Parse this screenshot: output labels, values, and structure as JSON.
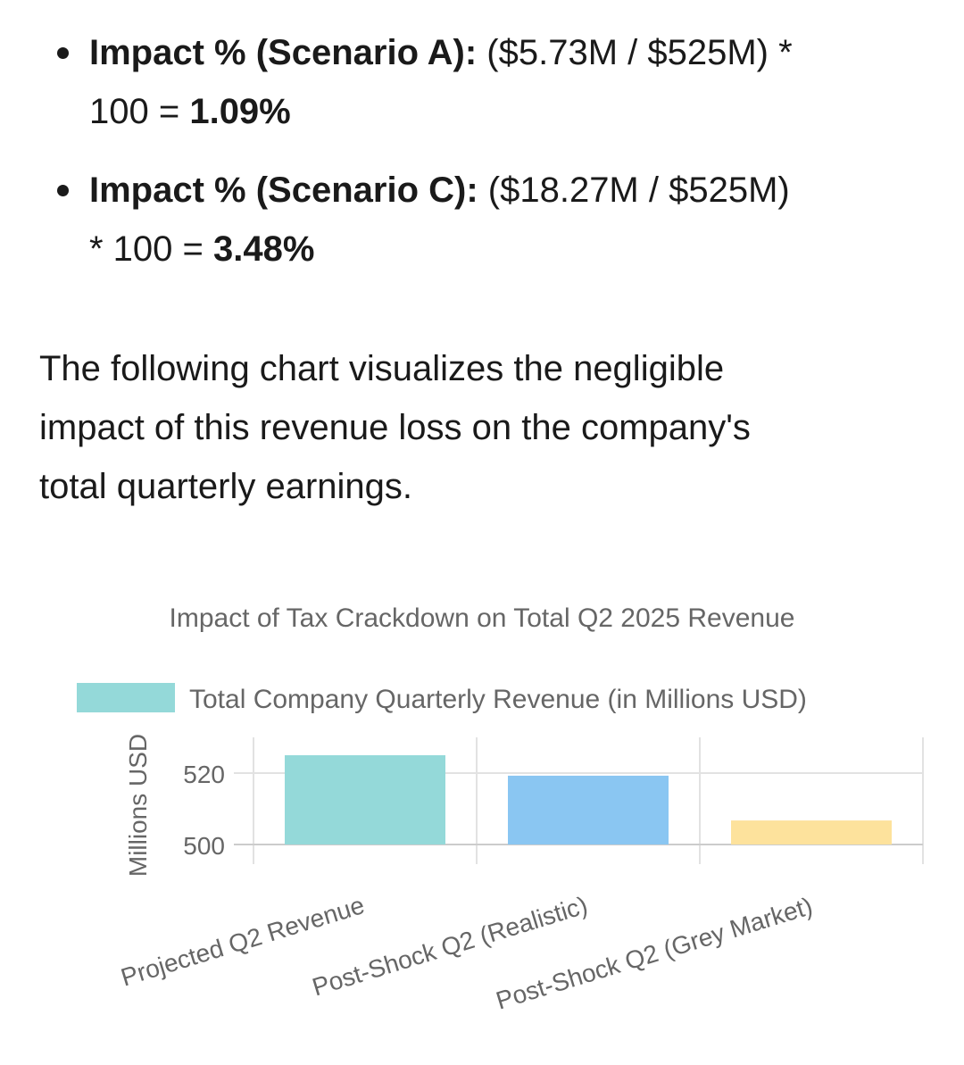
{
  "bullets": [
    {
      "label": "Impact % (Scenario A):",
      "formula_line1": " ($5.73M / $525M) *",
      "formula_line2": "100 = ",
      "result": "1.09%"
    },
    {
      "label": "Impact % (Scenario C):",
      "formula_line1": " ($18.27M / $525M)",
      "formula_line2": "* 100 = ",
      "result": "3.48%"
    }
  ],
  "paragraph": {
    "lines": [
      "The following chart visualizes the negligible",
      "impact of this revenue loss on the company's",
      "total quarterly earnings."
    ]
  },
  "chart_data": {
    "type": "bar",
    "title": "Impact of Tax Crackdown on Total Q2 2025 Revenue",
    "ylabel": "Millions USD",
    "xlabel": "",
    "categories": [
      "Projected Q2 Revenue",
      "Post-Shock Q2 (Realistic)",
      "Post-Shock Q2 (Grey Market)"
    ],
    "series": [
      {
        "name": "Total Company Quarterly Revenue (in Millions USD)",
        "values": [
          525,
          519.27,
          506.73
        ],
        "colors": [
          "#94d9d9",
          "#8ac6f2",
          "#fde29c"
        ]
      }
    ],
    "yticks": [
      500,
      520
    ],
    "ylim": [
      500,
      530
    ],
    "grid": true,
    "legend_position": "top"
  }
}
